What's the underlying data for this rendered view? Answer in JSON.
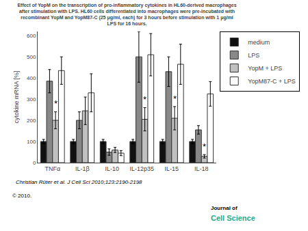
{
  "chart_data": {
    "type": "bar",
    "title": "Effect of YopM on the transcription of pro-inflammatory cytokines in HL60-derived macrophages\nafter stimulation with LPS. HL60 cells differentiated into macrophages were pre-incubated with\nrecombinant YopM and YopM87-C (25 μg/ml, each) for 3 hours before stimulation with 1 μg/ml\nLPS for 16 hours.",
    "y_label": "cytokine mRNA [%]",
    "categories": [
      "TNFα",
      "IL-1β",
      "IL-10",
      "IL-12p35",
      "IL-15",
      "IL-18"
    ],
    "series": [
      {
        "name": "medium",
        "color": "#111111",
        "values": [
          100,
          100,
          100,
          100,
          100,
          100
        ],
        "errors": [
          10,
          10,
          10,
          10,
          10,
          10
        ]
      },
      {
        "name": "LPS",
        "color": "#888888",
        "values": [
          385,
          200,
          50,
          500,
          430,
          155
        ],
        "errors": [
          55,
          40,
          15,
          120,
          70,
          20
        ]
      },
      {
        "name": "YopM + LPS",
        "color": "#c0c0c0",
        "values": [
          200,
          245,
          60,
          205,
          210,
          30
        ],
        "errors": [
          40,
          65,
          12,
          55,
          55,
          8
        ]
      },
      {
        "name": "YopM87-C + LPS",
        "color": "#ffffff",
        "values": [
          435,
          330,
          45,
          510,
          465,
          325
        ],
        "errors": [
          65,
          90,
          12,
          100,
          95,
          58
        ]
      }
    ],
    "ylim": [
      0,
      620
    ],
    "yticks": [
      0,
      100,
      200,
      300,
      400,
      500,
      600
    ],
    "grid": false,
    "legend": "right",
    "annotations": [
      {
        "text": "*",
        "category": "TNFα",
        "series": "YopM + LPS",
        "y": 248
      },
      {
        "text": "*",
        "category": "IL-12p35",
        "series": "YopM + LPS",
        "y": 268
      },
      {
        "text": "*",
        "category": "IL-15",
        "series": "YopM + LPS",
        "y": 272
      },
      {
        "text": "*",
        "category": "IL-18",
        "series": "YopM + LPS",
        "y": 44
      },
      {
        "text": "Christian Rüter et al. J Cell Sci 2010;123:2190-2198"
      },
      {
        "text": "© 2010."
      },
      {
        "text": "Journal of"
      },
      {
        "text": "Cell Science",
        "color": "#1aab8a"
      }
    ]
  }
}
